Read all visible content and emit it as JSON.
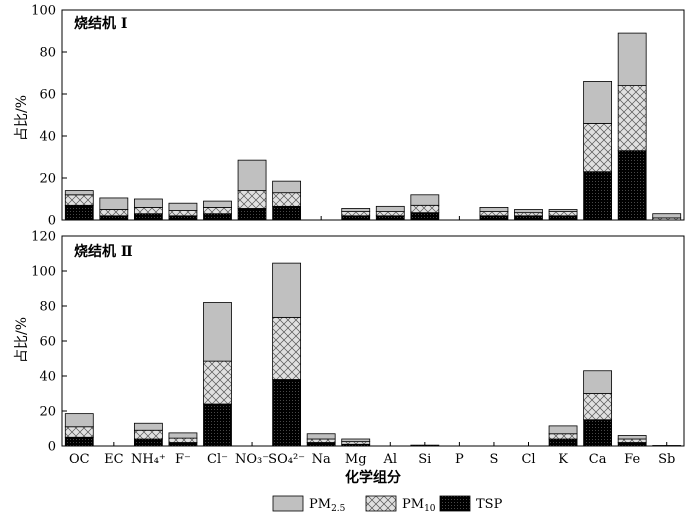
{
  "chart_data": {
    "type": "bar",
    "stacked": true,
    "xlabel": "化学组分",
    "ylabel": "占比/%",
    "categories": [
      "OC",
      "EC",
      "NH₄⁺",
      "F⁻",
      "Cl⁻",
      "NO₃⁻",
      "SO₄²⁻",
      "Na",
      "Mg",
      "Al",
      "Si",
      "P",
      "S",
      "Cl",
      "K",
      "Ca",
      "Fe",
      "Sb"
    ],
    "legend": [
      "PM2.5",
      "PM10",
      "TSP"
    ],
    "legend_position": "bottom",
    "colors": {
      "PM2.5": "#c0c0c0",
      "PM10": "#d9d9d9",
      "TSP": "#000000"
    },
    "panels": [
      {
        "title": "烧结机 Ⅰ",
        "ylim": [
          0,
          100
        ],
        "yticks": [
          "0",
          "20",
          "40",
          "60",
          "80",
          "100"
        ],
        "series": [
          {
            "name": "TSP",
            "values": [
              7,
              2,
              3,
              2,
              3,
              5.5,
              6.5,
              0,
              2,
              2,
              3.5,
              0,
              2,
              2,
              2,
              23,
              33,
              0
            ]
          },
          {
            "name": "PM10",
            "values": [
              5,
              3,
              3,
              2.5,
              3,
              8.5,
              6.5,
              0,
              2,
              2,
              3.5,
              0,
              2,
              1.5,
              2,
              23,
              31,
              1
            ]
          },
          {
            "name": "PM2.5",
            "values": [
              2,
              5.5,
              4,
              3.5,
              3,
              14.5,
              5.5,
              0,
              1.5,
              2.5,
              5,
              0,
              2,
              1.5,
              1,
              20,
              25,
              2
            ]
          }
        ]
      },
      {
        "title": "烧结机 Ⅱ",
        "ylim": [
          0,
          120
        ],
        "yticks": [
          "0",
          "20",
          "40",
          "60",
          "80",
          "100",
          "120"
        ],
        "series": [
          {
            "name": "TSP",
            "values": [
              5,
              0,
              4,
              2,
              24,
              0,
              38,
              2,
              1,
              0,
              0.5,
              0,
              0,
              0,
              4,
              15,
              2,
              0.3
            ]
          },
          {
            "name": "PM10",
            "values": [
              6,
              0,
              5,
              2.5,
              24.5,
              0,
              35.5,
              2,
              1.5,
              0,
              0,
              0,
              0,
              0,
              3,
              15,
              2,
              0
            ]
          },
          {
            "name": "PM2.5",
            "values": [
              7.5,
              0,
              4,
              3,
              33.5,
              0,
              31,
              3,
              1.5,
              0,
              0,
              0,
              0,
              0,
              4.5,
              13,
              2,
              0
            ]
          }
        ]
      }
    ]
  }
}
